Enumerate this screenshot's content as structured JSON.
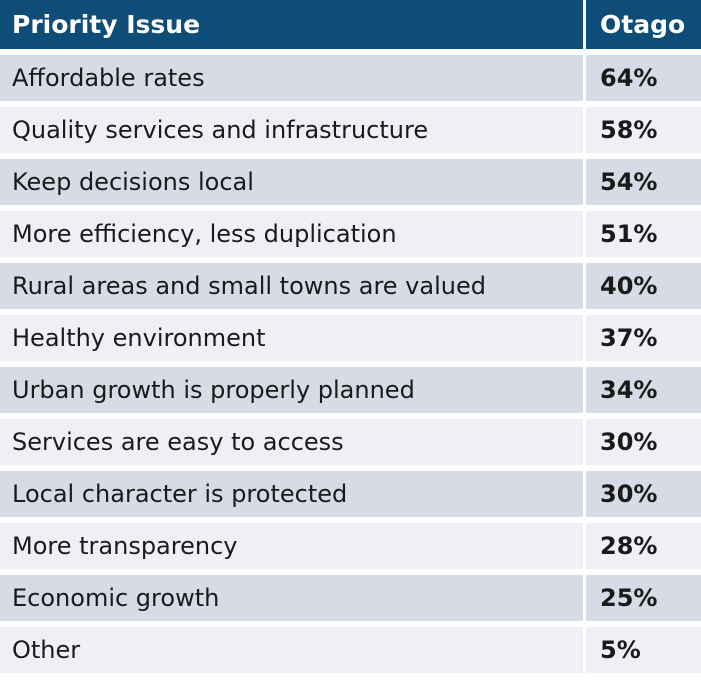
{
  "chart_data": {
    "type": "table",
    "columns": [
      "Priority Issue",
      "Otago"
    ],
    "rows": [
      {
        "issue": "Affordable rates",
        "value": "64%"
      },
      {
        "issue": "Quality services and infrastructure",
        "value": "58%"
      },
      {
        "issue": "Keep decisions local",
        "value": "54%"
      },
      {
        "issue": "More efficiency, less duplication",
        "value": "51%"
      },
      {
        "issue": "Rural areas and small towns are valued",
        "value": "40%"
      },
      {
        "issue": "Healthy environment",
        "value": "37%"
      },
      {
        "issue": "Urban growth is properly planned",
        "value": "34%"
      },
      {
        "issue": "Services are easy to access",
        "value": "30%"
      },
      {
        "issue": "Local character is protected",
        "value": "30%"
      },
      {
        "issue": "More transparency",
        "value": "28%"
      },
      {
        "issue": "Economic growth",
        "value": "25%"
      },
      {
        "issue": "Other",
        "value": "5%"
      }
    ]
  },
  "colors": {
    "header_bg": "#0f4d79",
    "row_shaded": "#d7dbe6",
    "row_plain": "#eff0f5"
  }
}
